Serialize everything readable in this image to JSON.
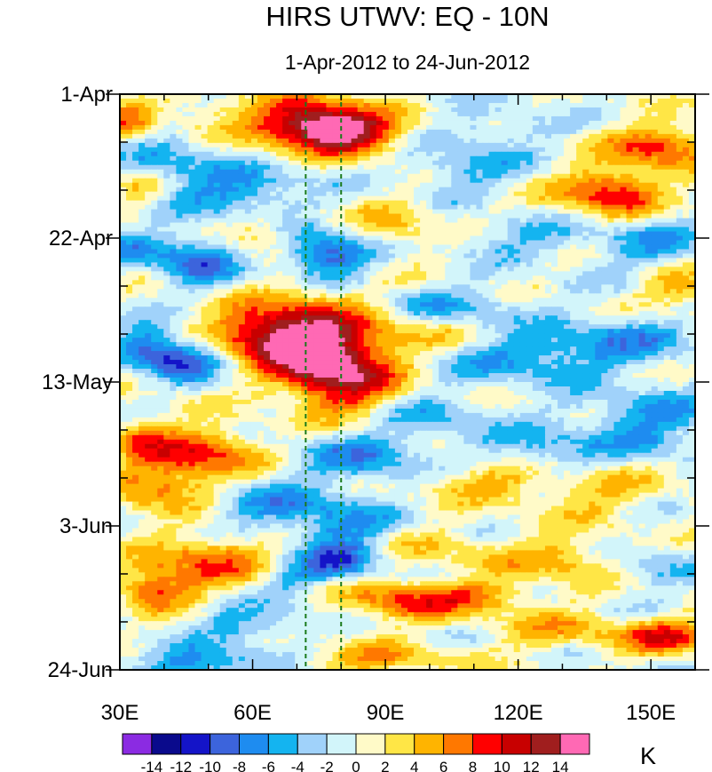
{
  "chart_data": {
    "type": "heatmap",
    "title": "HIRS UTWV: EQ - 10N",
    "subtitle": "1-Apr-2012 to 24-Jun-2012",
    "xlabel": "",
    "ylabel": "",
    "x_range": [
      "30E",
      "160E"
    ],
    "y_range": [
      "1-Apr-2012",
      "24-Jun-2012"
    ],
    "y_reversed": true,
    "x_ticks": [
      "30E",
      "60E",
      "90E",
      "120E",
      "150E"
    ],
    "y_ticks": [
      "1-Apr",
      "22-Apr",
      "13-May",
      "3-Jun",
      "24-Jun"
    ],
    "reference_lines": {
      "style": "dashed",
      "color": "#1a7a1a",
      "x": [
        "72E",
        "80E"
      ]
    },
    "colorbar": {
      "unit": "K",
      "levels": [
        -14,
        -12,
        -10,
        -8,
        -6,
        -4,
        -2,
        0,
        2,
        4,
        6,
        8,
        10,
        12,
        14
      ],
      "tick_labels": [
        "-14",
        "-12",
        "-10",
        "-8",
        "-6",
        "-4",
        "-2",
        "0",
        "2",
        "4",
        "6",
        "8",
        "10",
        "12",
        "14"
      ],
      "colors": [
        "#8b2be2",
        "#0a0a8c",
        "#1414c8",
        "#3c64dc",
        "#1e8cf0",
        "#14b4f0",
        "#a0d2fa",
        "#d2f5fa",
        "#fffac8",
        "#ffe646",
        "#ffb400",
        "#ff7800",
        "#ff0000",
        "#c80000",
        "#a01e1e",
        "#ff69b4"
      ]
    },
    "features": [
      {
        "x": 31,
        "y": 0.05,
        "sx": 4,
        "sy": 0.025,
        "a": 6
      },
      {
        "x": 73,
        "y": 0.05,
        "sx": 9,
        "sy": 0.03,
        "a": 15
      },
      {
        "x": 84,
        "y": 0.07,
        "sx": 8,
        "sy": 0.025,
        "a": 9
      },
      {
        "x": 47,
        "y": 0.02,
        "sx": 8,
        "sy": 0.02,
        "a": 3
      },
      {
        "x": 152,
        "y": 0.09,
        "sx": 8,
        "sy": 0.025,
        "a": 9
      },
      {
        "x": 141,
        "y": 0.17,
        "sx": 8,
        "sy": 0.03,
        "a": 10
      },
      {
        "x": 115,
        "y": 0.06,
        "sx": 12,
        "sy": 0.025,
        "a": -3
      },
      {
        "x": 57,
        "y": 0.17,
        "sx": 10,
        "sy": 0.03,
        "a": -7
      },
      {
        "x": 40,
        "y": 0.12,
        "sx": 9,
        "sy": 0.025,
        "a": -5
      },
      {
        "x": 108,
        "y": 0.13,
        "sx": 9,
        "sy": 0.025,
        "a": -5
      },
      {
        "x": 34,
        "y": 0.16,
        "sx": 4,
        "sy": 0.02,
        "a": 4
      },
      {
        "x": 77,
        "y": 0.28,
        "sx": 7,
        "sy": 0.03,
        "a": -10
      },
      {
        "x": 48,
        "y": 0.29,
        "sx": 6,
        "sy": 0.03,
        "a": -8
      },
      {
        "x": 35,
        "y": 0.27,
        "sx": 5,
        "sy": 0.025,
        "a": -5
      },
      {
        "x": 62,
        "y": 0.24,
        "sx": 5,
        "sy": 0.025,
        "a": 4
      },
      {
        "x": 92,
        "y": 0.23,
        "sx": 7,
        "sy": 0.03,
        "a": 4
      },
      {
        "x": 150,
        "y": 0.26,
        "sx": 10,
        "sy": 0.035,
        "a": -5
      },
      {
        "x": 156,
        "y": 0.34,
        "sx": 6,
        "sy": 0.03,
        "a": 5
      },
      {
        "x": 120,
        "y": 0.25,
        "sx": 10,
        "sy": 0.025,
        "a": -4
      },
      {
        "x": 72,
        "y": 0.41,
        "sx": 10,
        "sy": 0.05,
        "a": 9
      },
      {
        "x": 62,
        "y": 0.42,
        "sx": 9,
        "sy": 0.03,
        "a": 9
      },
      {
        "x": 76,
        "y": 0.48,
        "sx": 8,
        "sy": 0.04,
        "a": 10
      },
      {
        "x": 84,
        "y": 0.49,
        "sx": 8,
        "sy": 0.07,
        "a": 6
      },
      {
        "x": 44,
        "y": 0.46,
        "sx": 7,
        "sy": 0.025,
        "a": -10
      },
      {
        "x": 36,
        "y": 0.43,
        "sx": 5,
        "sy": 0.025,
        "a": -6
      },
      {
        "x": 124,
        "y": 0.46,
        "sx": 14,
        "sy": 0.03,
        "a": -6
      },
      {
        "x": 104,
        "y": 0.37,
        "sx": 12,
        "sy": 0.025,
        "a": -5
      },
      {
        "x": 145,
        "y": 0.42,
        "sx": 12,
        "sy": 0.03,
        "a": -5
      },
      {
        "x": 99,
        "y": 0.41,
        "sx": 8,
        "sy": 0.03,
        "a": 3
      },
      {
        "x": 150,
        "y": 0.55,
        "sx": 12,
        "sy": 0.03,
        "a": -5
      },
      {
        "x": 150,
        "y": 0.6,
        "sx": 8,
        "sy": 0.025,
        "a": -4
      },
      {
        "x": 48,
        "y": 0.62,
        "sx": 9,
        "sy": 0.03,
        "a": 9
      },
      {
        "x": 38,
        "y": 0.68,
        "sx": 8,
        "sy": 0.03,
        "a": 7
      },
      {
        "x": 34,
        "y": 0.59,
        "sx": 4,
        "sy": 0.025,
        "a": 5
      },
      {
        "x": 66,
        "y": 0.72,
        "sx": 10,
        "sy": 0.03,
        "a": -6
      },
      {
        "x": 85,
        "y": 0.63,
        "sx": 10,
        "sy": 0.035,
        "a": -7
      },
      {
        "x": 82,
        "y": 0.75,
        "sx": 8,
        "sy": 0.025,
        "a": -5
      },
      {
        "x": 112,
        "y": 0.67,
        "sx": 10,
        "sy": 0.025,
        "a": 5
      },
      {
        "x": 137,
        "y": 0.69,
        "sx": 10,
        "sy": 0.03,
        "a": 4
      },
      {
        "x": 126,
        "y": 0.62,
        "sx": 10,
        "sy": 0.03,
        "a": -5
      },
      {
        "x": 100,
        "y": 0.56,
        "sx": 10,
        "sy": 0.03,
        "a": -4
      },
      {
        "x": 132,
        "y": 0.81,
        "sx": 10,
        "sy": 0.03,
        "a": 6
      },
      {
        "x": 102,
        "y": 0.79,
        "sx": 9,
        "sy": 0.025,
        "a": 3
      },
      {
        "x": 50,
        "y": 0.81,
        "sx": 10,
        "sy": 0.035,
        "a": 7
      },
      {
        "x": 38,
        "y": 0.86,
        "sx": 6,
        "sy": 0.025,
        "a": 8
      },
      {
        "x": 80,
        "y": 0.81,
        "sx": 6,
        "sy": 0.025,
        "a": -9
      },
      {
        "x": 70,
        "y": 0.84,
        "sx": 5,
        "sy": 0.02,
        "a": -5
      },
      {
        "x": 94,
        "y": 0.88,
        "sx": 10,
        "sy": 0.025,
        "a": 8
      },
      {
        "x": 112,
        "y": 0.87,
        "sx": 8,
        "sy": 0.02,
        "a": 5
      },
      {
        "x": 148,
        "y": 0.82,
        "sx": 10,
        "sy": 0.03,
        "a": -4
      },
      {
        "x": 153,
        "y": 0.94,
        "sx": 8,
        "sy": 0.02,
        "a": 9
      },
      {
        "x": 128,
        "y": 0.93,
        "sx": 10,
        "sy": 0.025,
        "a": 4
      },
      {
        "x": 60,
        "y": 0.92,
        "sx": 10,
        "sy": 0.025,
        "a": -5
      },
      {
        "x": 48,
        "y": 0.99,
        "sx": 10,
        "sy": 0.02,
        "a": -7
      },
      {
        "x": 88,
        "y": 0.98,
        "sx": 12,
        "sy": 0.02,
        "a": 5
      }
    ]
  }
}
